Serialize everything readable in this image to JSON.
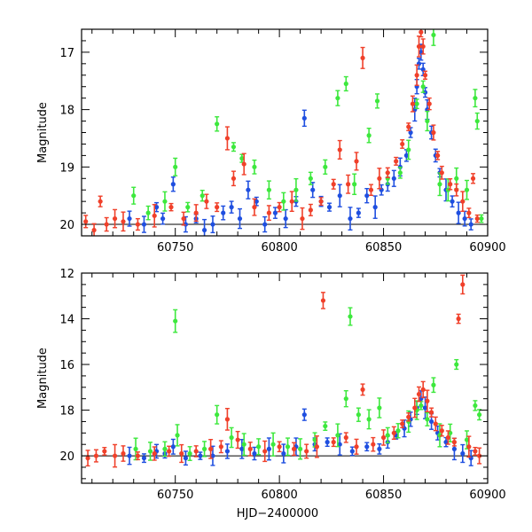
{
  "chart_data": [
    {
      "type": "scatter",
      "title": "",
      "xlabel": "",
      "ylabel": "Magnitude",
      "xlim": [
        60705,
        60900
      ],
      "ylim": [
        20.2,
        16.6
      ],
      "y_inverted": true,
      "x_ticks": [
        60750,
        60800,
        60850,
        60900
      ],
      "y_ticks": [
        17,
        18,
        19,
        20
      ],
      "reference_line_y": 20.0,
      "grid": false,
      "legend": "none",
      "series": [
        {
          "color": "#1f4fe0",
          "points": [
            [
              60728,
              19.9
            ],
            [
              60735,
              20.0
            ],
            [
              60741,
              19.7
            ],
            [
              60744,
              19.9
            ],
            [
              60749,
              19.3
            ],
            [
              60755,
              20.0
            ],
            [
              60760,
              19.9
            ],
            [
              60764,
              20.1
            ],
            [
              60768,
              20.0
            ],
            [
              60773,
              19.8
            ],
            [
              60777,
              19.7
            ],
            [
              60781,
              19.9
            ],
            [
              60785,
              19.4
            ],
            [
              60789,
              19.6
            ],
            [
              60793,
              20.0
            ],
            [
              60798,
              19.8
            ],
            [
              60803,
              19.9
            ],
            [
              60808,
              19.6
            ],
            [
              60812,
              18.15
            ],
            [
              60816,
              19.4
            ],
            [
              60820,
              19.6
            ],
            [
              60824,
              19.7
            ],
            [
              60829,
              19.5
            ],
            [
              60834,
              19.9
            ],
            [
              60838,
              19.8
            ],
            [
              60842,
              19.5
            ],
            [
              60846,
              19.7
            ],
            [
              60849,
              19.4
            ],
            [
              60852,
              19.3
            ],
            [
              60855,
              19.2
            ],
            [
              60858,
              19.0
            ],
            [
              60861,
              18.8
            ],
            [
              60863,
              18.4
            ],
            [
              60865,
              18.0
            ],
            [
              60866,
              17.6
            ],
            [
              60867,
              17.2
            ],
            [
              60868,
              17.0
            ],
            [
              60869,
              17.3
            ],
            [
              60870,
              17.7
            ],
            [
              60871,
              18.0
            ],
            [
              60873,
              18.4
            ],
            [
              60875,
              18.8
            ],
            [
              60877,
              19.1
            ],
            [
              60880,
              19.4
            ],
            [
              60883,
              19.6
            ],
            [
              60886,
              19.8
            ],
            [
              60889,
              19.9
            ],
            [
              60892,
              20.0
            ]
          ]
        },
        {
          "color": "#3de83d",
          "points": [
            [
              60730,
              19.5
            ],
            [
              60737,
              19.8
            ],
            [
              60745,
              19.6
            ],
            [
              60750,
              19.0
            ],
            [
              60756,
              19.7
            ],
            [
              60763,
              19.5
            ],
            [
              60770,
              18.25
            ],
            [
              60778,
              18.65
            ],
            [
              60782,
              18.85
            ],
            [
              60788,
              19.0
            ],
            [
              60795,
              19.4
            ],
            [
              60802,
              19.6
            ],
            [
              60808,
              19.4
            ],
            [
              60815,
              19.2
            ],
            [
              60822,
              19.0
            ],
            [
              60828,
              17.8
            ],
            [
              60832,
              17.55
            ],
            [
              60836,
              19.3
            ],
            [
              60843,
              18.45
            ],
            [
              60847,
              17.85
            ],
            [
              60852,
              19.2
            ],
            [
              60858,
              19.1
            ],
            [
              60862,
              18.7
            ],
            [
              60866,
              17.9
            ],
            [
              60869,
              17.6
            ],
            [
              60871,
              18.2
            ],
            [
              60874,
              16.7
            ],
            [
              60877,
              19.3
            ],
            [
              60881,
              19.4
            ],
            [
              60885,
              19.2
            ],
            [
              60890,
              19.4
            ],
            [
              60894,
              17.8
            ],
            [
              60895,
              18.2
            ],
            [
              60897,
              19.9
            ]
          ]
        },
        {
          "color": "#f0402a",
          "points": [
            [
              60707,
              19.95
            ],
            [
              60711,
              20.1
            ],
            [
              60714,
              19.6
            ],
            [
              60717,
              20.0
            ],
            [
              60721,
              19.9
            ],
            [
              60725,
              19.95
            ],
            [
              60732,
              20.0
            ],
            [
              60740,
              19.85
            ],
            [
              60748,
              19.7
            ],
            [
              60754,
              19.9
            ],
            [
              60760,
              19.8
            ],
            [
              60765,
              19.6
            ],
            [
              60770,
              19.7
            ],
            [
              60775,
              18.5
            ],
            [
              60778,
              19.2
            ],
            [
              60783,
              18.95
            ],
            [
              60788,
              19.7
            ],
            [
              60795,
              19.8
            ],
            [
              60800,
              19.7
            ],
            [
              60806,
              19.6
            ],
            [
              60811,
              19.9
            ],
            [
              60815,
              19.75
            ],
            [
              60820,
              19.6
            ],
            [
              60826,
              19.3
            ],
            [
              60829,
              18.7
            ],
            [
              60833,
              19.3
            ],
            [
              60837,
              18.9
            ],
            [
              60840,
              17.1
            ],
            [
              60844,
              19.4
            ],
            [
              60848,
              19.2
            ],
            [
              60852,
              19.1
            ],
            [
              60856,
              18.9
            ],
            [
              60859,
              18.6
            ],
            [
              60862,
              18.3
            ],
            [
              60864,
              17.9
            ],
            [
              60866,
              17.4
            ],
            [
              60867,
              16.9
            ],
            [
              60868,
              16.65
            ],
            [
              60869,
              16.9
            ],
            [
              60870,
              17.4
            ],
            [
              60872,
              17.9
            ],
            [
              60874,
              18.4
            ],
            [
              60876,
              18.8
            ],
            [
              60878,
              19.1
            ],
            [
              60882,
              19.3
            ],
            [
              60885,
              19.4
            ],
            [
              60888,
              19.6
            ],
            [
              60891,
              19.8
            ],
            [
              60893,
              19.2
            ],
            [
              60895,
              19.9
            ]
          ]
        }
      ]
    },
    {
      "type": "scatter",
      "title": "",
      "xlabel": "HJD−2400000",
      "ylabel": "Magnitude",
      "xlim": [
        60705,
        60900
      ],
      "ylim": [
        21.2,
        12.0
      ],
      "y_inverted": true,
      "x_ticks": [
        60750,
        60800,
        60850,
        60900
      ],
      "y_ticks": [
        12,
        14,
        16,
        18,
        20
      ],
      "reference_line_y": 20.0,
      "grid": false,
      "legend": "none",
      "series": [
        {
          "color": "#1f4fe0",
          "points": [
            [
              60728,
              20.0
            ],
            [
              60735,
              20.1
            ],
            [
              60741,
              19.8
            ],
            [
              60745,
              19.9
            ],
            [
              60749,
              19.6
            ],
            [
              60755,
              20.1
            ],
            [
              60762,
              20.0
            ],
            [
              60768,
              20.0
            ],
            [
              60775,
              19.8
            ],
            [
              60782,
              19.7
            ],
            [
              60788,
              19.9
            ],
            [
              60795,
              19.7
            ],
            [
              60802,
              19.9
            ],
            [
              60808,
              19.6
            ],
            [
              60812,
              18.2
            ],
            [
              60817,
              19.5
            ],
            [
              60823,
              19.4
            ],
            [
              60829,
              19.5
            ],
            [
              60835,
              19.8
            ],
            [
              60842,
              19.6
            ],
            [
              60848,
              19.7
            ],
            [
              60852,
              19.4
            ],
            [
              60856,
              19.1
            ],
            [
              60860,
              18.8
            ],
            [
              60863,
              18.4
            ],
            [
              60866,
              17.9
            ],
            [
              60868,
              17.5
            ],
            [
              60870,
              17.9
            ],
            [
              60873,
              18.5
            ],
            [
              60876,
              19.0
            ],
            [
              60880,
              19.4
            ],
            [
              60884,
              19.7
            ],
            [
              60888,
              19.9
            ],
            [
              60892,
              20.1
            ]
          ]
        },
        {
          "color": "#3de83d",
          "points": [
            [
              60731,
              19.7
            ],
            [
              60738,
              19.8
            ],
            [
              60745,
              19.7
            ],
            [
              60750,
              14.1
            ],
            [
              60751,
              19.1
            ],
            [
              60757,
              19.9
            ],
            [
              60764,
              19.7
            ],
            [
              60770,
              18.2
            ],
            [
              60777,
              19.2
            ],
            [
              60783,
              19.5
            ],
            [
              60790,
              19.6
            ],
            [
              60797,
              19.5
            ],
            [
              60804,
              19.6
            ],
            [
              60810,
              19.7
            ],
            [
              60817,
              19.3
            ],
            [
              60822,
              18.7
            ],
            [
              60828,
              19.1
            ],
            [
              60832,
              17.5
            ],
            [
              60834,
              13.9
            ],
            [
              60838,
              18.2
            ],
            [
              60843,
              18.4
            ],
            [
              60848,
              17.9
            ],
            [
              60852,
              19.1
            ],
            [
              60857,
              18.9
            ],
            [
              60862,
              18.5
            ],
            [
              60866,
              18.0
            ],
            [
              60868,
              17.8
            ],
            [
              60871,
              18.4
            ],
            [
              60874,
              16.9
            ],
            [
              60877,
              19.1
            ],
            [
              60882,
              19.0
            ],
            [
              60885,
              16.0
            ],
            [
              60890,
              19.3
            ],
            [
              60894,
              17.8
            ],
            [
              60896,
              18.2
            ]
          ]
        },
        {
          "color": "#f0402a",
          "points": [
            [
              60708,
              20.1
            ],
            [
              60712,
              20.0
            ],
            [
              60716,
              19.8
            ],
            [
              60721,
              20.0
            ],
            [
              60725,
              19.9
            ],
            [
              60732,
              20.0
            ],
            [
              60740,
              19.9
            ],
            [
              60747,
              19.8
            ],
            [
              60753,
              19.9
            ],
            [
              60760,
              19.8
            ],
            [
              60767,
              19.7
            ],
            [
              60772,
              19.6
            ],
            [
              60775,
              18.4
            ],
            [
              60780,
              19.3
            ],
            [
              60786,
              19.7
            ],
            [
              60793,
              19.8
            ],
            [
              60800,
              19.6
            ],
            [
              60807,
              19.7
            ],
            [
              60813,
              19.8
            ],
            [
              60818,
              19.6
            ],
            [
              60821,
              13.2
            ],
            [
              60826,
              19.4
            ],
            [
              60832,
              19.2
            ],
            [
              60837,
              19.6
            ],
            [
              60840,
              17.1
            ],
            [
              60845,
              19.5
            ],
            [
              60850,
              19.2
            ],
            [
              60855,
              19.0
            ],
            [
              60859,
              18.6
            ],
            [
              60862,
              18.3
            ],
            [
              60865,
              17.9
            ],
            [
              60867,
              17.3
            ],
            [
              60869,
              17.1
            ],
            [
              60871,
              17.6
            ],
            [
              60873,
              18.1
            ],
            [
              60875,
              18.6
            ],
            [
              60878,
              18.9
            ],
            [
              60881,
              19.2
            ],
            [
              60884,
              19.4
            ],
            [
              60886,
              14.0
            ],
            [
              60888,
              12.5
            ],
            [
              60891,
              19.6
            ],
            [
              60894,
              19.8
            ],
            [
              60896,
              20.0
            ]
          ]
        }
      ]
    }
  ]
}
